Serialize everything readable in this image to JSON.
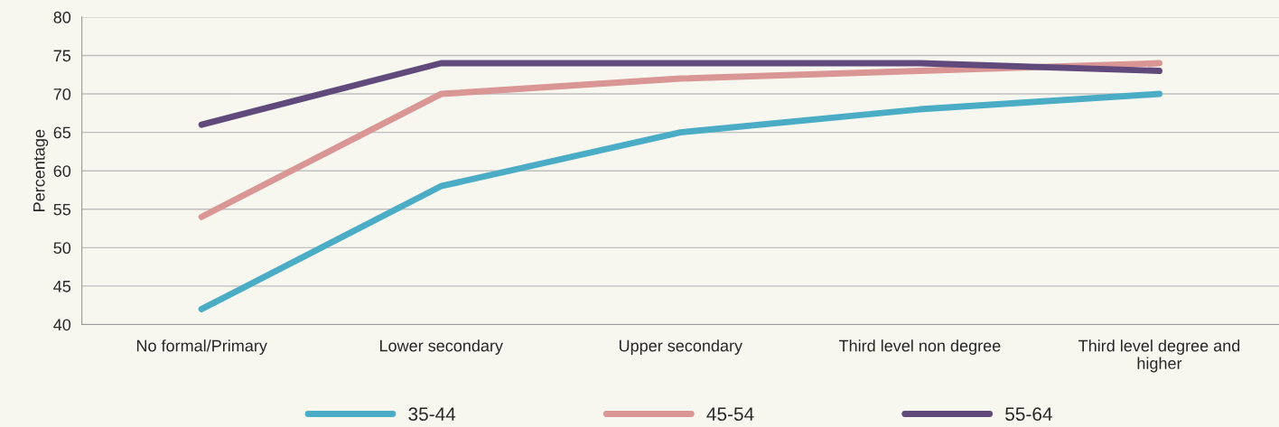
{
  "chart_data": {
    "type": "line",
    "ylabel": "Percentage",
    "categories": [
      "No formal/Primary",
      "Lower secondary",
      "Upper secondary",
      "Third level non degree",
      "Third level degree and\nhigher"
    ],
    "series": [
      {
        "name": "35-44",
        "color": "#4bacc6",
        "values": [
          42,
          58,
          65,
          68,
          70
        ]
      },
      {
        "name": "45-54",
        "color": "#d99694",
        "values": [
          54,
          70,
          72,
          73,
          74
        ]
      },
      {
        "name": "55-64",
        "color": "#604a7b",
        "values": [
          66,
          74,
          74,
          74,
          73
        ]
      }
    ],
    "ylim": [
      40,
      80
    ],
    "yticks": [
      40,
      45,
      50,
      55,
      60,
      65,
      70,
      75,
      80
    ],
    "grid": "y",
    "legend": "bottom",
    "marker": "none",
    "line_style": "solid"
  }
}
